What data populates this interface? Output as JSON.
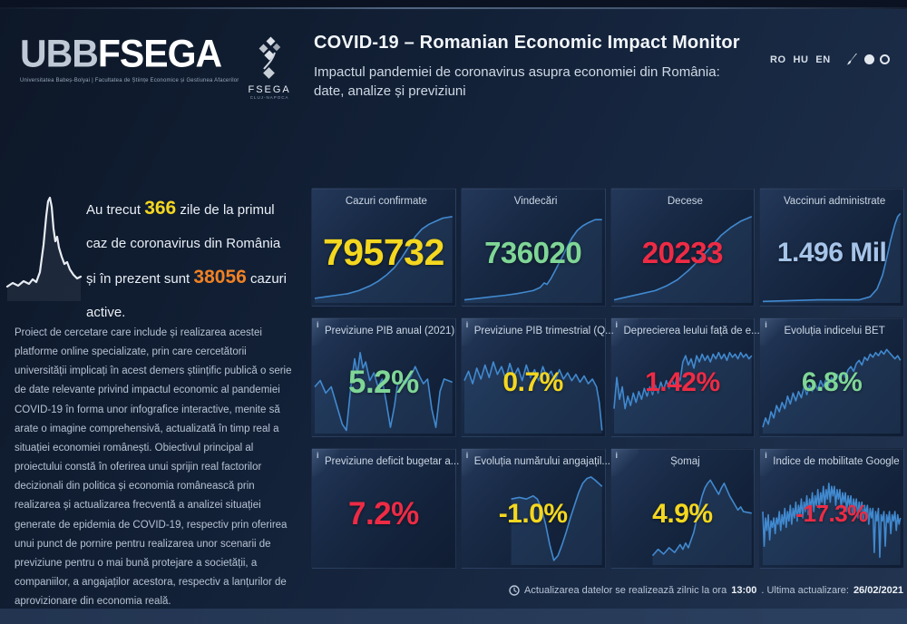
{
  "ui": {
    "info_glyph": "i",
    "chart_line": "#4189cf",
    "chart_fill": "rgba(94,150,210,0.14)",
    "accent_yellow": "#f4d71f",
    "accent_green": "#7fd696",
    "accent_red": "#ee2b45",
    "accent_orange": "#f08124",
    "accent_lightblue": "#a6c4e9"
  },
  "header": {
    "brand_light": "UBB",
    "brand_bold": "FSEGA",
    "brand_tagline": "Universitatea Babeș-Bolyai | Facultatea de Științe Economice și Gestiunea Afacerilor",
    "mark_text": "FSEGA",
    "mark_sub": "CLUJ-NAPOCA",
    "title": "COVID-19 – Romanian Economic Impact Monitor",
    "subtitle": "Impactul pandemiei de coronavirus asupra economiei din România: date, analize și previziuni",
    "languages": [
      "RO",
      "HU",
      "EN"
    ]
  },
  "sidebar": {
    "intro_pre": "Au trecut ",
    "intro_days": "366",
    "intro_mid": " zile de la primul caz de coronavirus din România și în prezent sunt ",
    "intro_active": "38056",
    "intro_post": " cazuri active.",
    "description": "Proiect de cercetare care include și realizarea acestei platforme online specializate, prin care cercetătorii universității implicați în acest demers științific publică o serie de date relevante privind impactul economic al pandemiei COVID-19 în forma unor infografice interactive, menite să arate o imagine comprehensivă, actualizată în timp real a situației economiei românești. Obiectivul principal al proiectului constă în oferirea unui sprijin real factorilor decizionali din politica și economia românească prin realizarea și actualizarea frecventă a analizei situației generate de epidemia de COVID-19, respectiv prin oferirea unui punct de pornire pentru realizarea unor scenarii de previziune pentru o mai bună protejare a societății, a companiilor, a angajaților acestora, respectiv a lanțurilor de aprovizionare din economia reală."
  },
  "cards": [
    {
      "title": "Cazuri confirmate",
      "value": "795732",
      "color": "#f4d71f",
      "info": false,
      "spark": "0,57 8,56 16,55 24,54 32,52 40,49 46,46 52,42 58,37 63,31 68,24 73,17 78,12 83,9 88,7 93,5 100,4"
    },
    {
      "title": "Vindecări",
      "value": "736020",
      "color": "#7fd696",
      "info": false,
      "spark": "0,58 10,57 20,56 30,55 38,54 44,53 50,52 55,50 58,47 60,48 63,44 66,39 70,32 74,25 78,18 82,13 86,10 90,8 95,6 100,6"
    },
    {
      "title": "Decese",
      "value": "20233",
      "color": "#ee2b45",
      "info": false,
      "spark": "0,58 10,56 20,54 30,52 38,49 46,45 54,39 62,32 70,24 78,16 85,11 92,7 100,4"
    },
    {
      "title": "Vaccinuri administrate",
      "value": "1.496 Mil",
      "color": "#a6c4e9",
      "info": false,
      "spark": "0,59 40,58 70,58 78,56 83,51 87,42 90,31 93,19 96,9 98,4 100,2"
    },
    {
      "title": "Previziune PIB anual (2021)",
      "value": "5.2%",
      "color": "#7fd696",
      "info": true,
      "spark": "0,30 4,26 8,34 12,30 16,42 20,54 23,58 26,32 29,12 31,22 33,8 35,18 37,14 40,26 43,21 46,30 49,25 52,40 55,56 58,42 60,29 63,25 66,28 70,23 73,17 76,23 79,28 82,25 85,44 88,56 91,33 94,25 100,27"
    },
    {
      "title": "Previziune PIB trimestrial (Q...",
      "value": "0.7%",
      "color": "#f4d71f",
      "info": true,
      "spark": "0,26 3,20 6,28 9,18 12,25 15,16 18,24 21,14 24,22 27,17 30,25 33,15 36,23 39,18 42,26 45,16 48,24 51,19 54,26 57,17 60,24 63,20 66,26 69,19 72,25 75,21 78,26 81,22 84,27 87,23 90,28 93,25 96,30 98,40 100,58"
    },
    {
      "title": "Deprecierea leului față de e...",
      "value": "1.42%",
      "color": "#ee2b45",
      "info": true,
      "spark": "0,44 2,24 4,38 6,30 8,44 10,36 12,42 14,34 16,40 18,33 20,38 22,31 24,36 26,30 28,35 30,29 32,34 34,27 36,32 38,26 40,31 42,25 44,30 46,22 48,26 50,14 52,10 54,16 56,12 58,18 60,10 62,14 64,9 66,13 68,10 70,14 72,9 74,12 76,8 78,12 80,9 82,13 84,8 86,11 88,9 90,12 92,8 94,11 96,9 98,12 100,10"
    },
    {
      "title": "Evoluția indicelui BET",
      "value": "6.8%",
      "color": "#7fd696",
      "info": true,
      "spark": "0,56 2,50 4,54 6,46 8,50 10,42 12,46 14,40 16,44 18,36 20,41 22,34 24,39 26,33 28,37 30,30 32,35 34,29 36,33 38,28 40,32 42,26 44,30 46,25 48,29 50,24 52,27 54,22 56,26 58,21 60,24 62,19 64,17 66,20 68,15 70,13 72,16 74,11 76,13 78,9 80,11 82,8 84,10 86,7 88,9 90,6 92,8 94,10 96,12 98,10 100,13"
    },
    {
      "title": "Previziune deficit bugetar a...",
      "value": "7.2%",
      "color": "#ee2b45",
      "info": true,
      "spark": ""
    },
    {
      "title": "Evoluția numărului angajațil...",
      "value": "-1.0%",
      "color": "#f4d71f",
      "info": true,
      "spark": "34,18 40,17 45,18 50,16 53,18 56,24 59,34 62,47 65,57 68,54 71,47 74,39 77,30 80,22 83,14 86,8 89,5 92,4 95,6 100,10"
    },
    {
      "title": "Șomaj",
      "value": "4.9%",
      "color": "#f4d71f",
      "info": true,
      "spark": "28,54 32,50 36,53 40,49 44,52 48,47 50,50 52,46 54,49 56,44 58,39 60,31 62,23 64,16 66,11 68,8 70,6 72,9 74,12 76,15 78,11 80,8 82,12 84,16 86,19 88,22 90,25 92,23 94,26 100,27"
    },
    {
      "title": "Indice de mobilitate Google",
      "value": "-17.3%",
      "color": "#ee2b45",
      "info": true,
      "spark": "0,26 1,48 2,30 3,38 4,28 5,44 6,32 7,36 8,30 9,40 10,30 11,34 12,26 13,38 14,28 15,34 16,24 17,36 18,26 19,32 20,22 21,34 22,24 23,30 24,20 25,32 26,22 27,28 28,18 29,30 30,20 31,26 32,16 33,28 34,18 35,24 36,14 37,26 38,16 39,22 40,12 41,24 42,14 43,20 44,10 45,22 46,12 47,18 48,8 49,20 50,10 51,16 52,10 53,22 54,12 55,18 56,12 57,24 58,14 59,20 60,14 61,26 62,16 63,22 64,16 65,28 66,18 67,24 68,18 69,30 70,20 71,26 72,20 73,32 74,22 75,28 76,22 77,34 78,24 79,30 80,24 81,52 82,26 83,32 84,24 85,55 86,28 87,32 88,26 89,48 90,28 91,33 92,26 93,40 94,28 95,32 96,26 97,38 98,28 99,34 100,30"
    }
  ],
  "footer": {
    "text_pre": "Actualizarea datelor se realizează zilnic la ora ",
    "time": "13:00",
    "text_mid": ". Ultima actualizare: ",
    "date": "26/02/2021"
  }
}
